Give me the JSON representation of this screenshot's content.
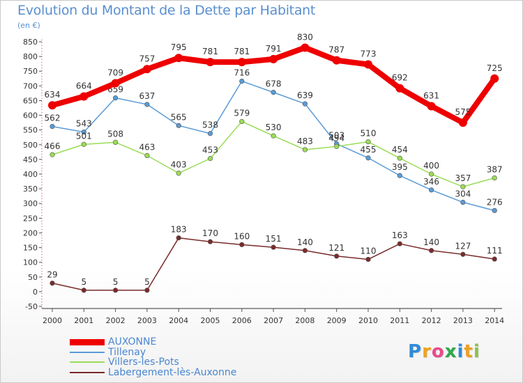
{
  "page": {
    "title": "Evolution du Montant de la Dette par Habitant",
    "unit": "(en €)"
  },
  "logo": {
    "letters": [
      "P",
      "r",
      "o",
      "x",
      "i",
      "t",
      "i"
    ],
    "colors": [
      "#2e8bd8",
      "#f0a020",
      "#e84a8a",
      "#2ea84a",
      "#2e8bd8",
      "#f0a020",
      "#8bc34a"
    ]
  },
  "chart_data": {
    "type": "line",
    "title": "Evolution du Montant de la Dette par Habitant",
    "ylabel": "(en €)",
    "x": [
      "2000",
      "2001",
      "2002",
      "2003",
      "2004",
      "2005",
      "2006",
      "2007",
      "2008",
      "2009",
      "2010",
      "2011",
      "2012",
      "2013",
      "2014"
    ],
    "ylim": [
      -50,
      850
    ],
    "yticks": [
      -50,
      0,
      50,
      100,
      150,
      200,
      250,
      300,
      350,
      400,
      450,
      500,
      550,
      600,
      650,
      700,
      750,
      800,
      850
    ],
    "grid": false,
    "legend_position": "bottom-left",
    "series": [
      {
        "name": "AUXONNE",
        "color": "#ee0000",
        "emphasis": true,
        "values": [
          634,
          664,
          709,
          757,
          795,
          781,
          781,
          791,
          830,
          787,
          773,
          692,
          631,
          575,
          725
        ]
      },
      {
        "name": "Tillenay",
        "color": "#5a9ad6",
        "emphasis": false,
        "values": [
          562,
          543,
          659,
          637,
          565,
          538,
          716,
          678,
          639,
          503,
          455,
          395,
          346,
          304,
          276
        ]
      },
      {
        "name": "Villers-les-Pots",
        "color": "#99dd55",
        "emphasis": false,
        "values": [
          466,
          501,
          508,
          463,
          403,
          453,
          579,
          530,
          483,
          494,
          510,
          454,
          400,
          357,
          387
        ]
      },
      {
        "name": "Labergement-lès-Auxonne",
        "color": "#7a2a2a",
        "emphasis": false,
        "values": [
          29,
          5,
          5,
          5,
          183,
          170,
          160,
          151,
          140,
          121,
          110,
          163,
          140,
          127,
          111
        ]
      }
    ]
  }
}
